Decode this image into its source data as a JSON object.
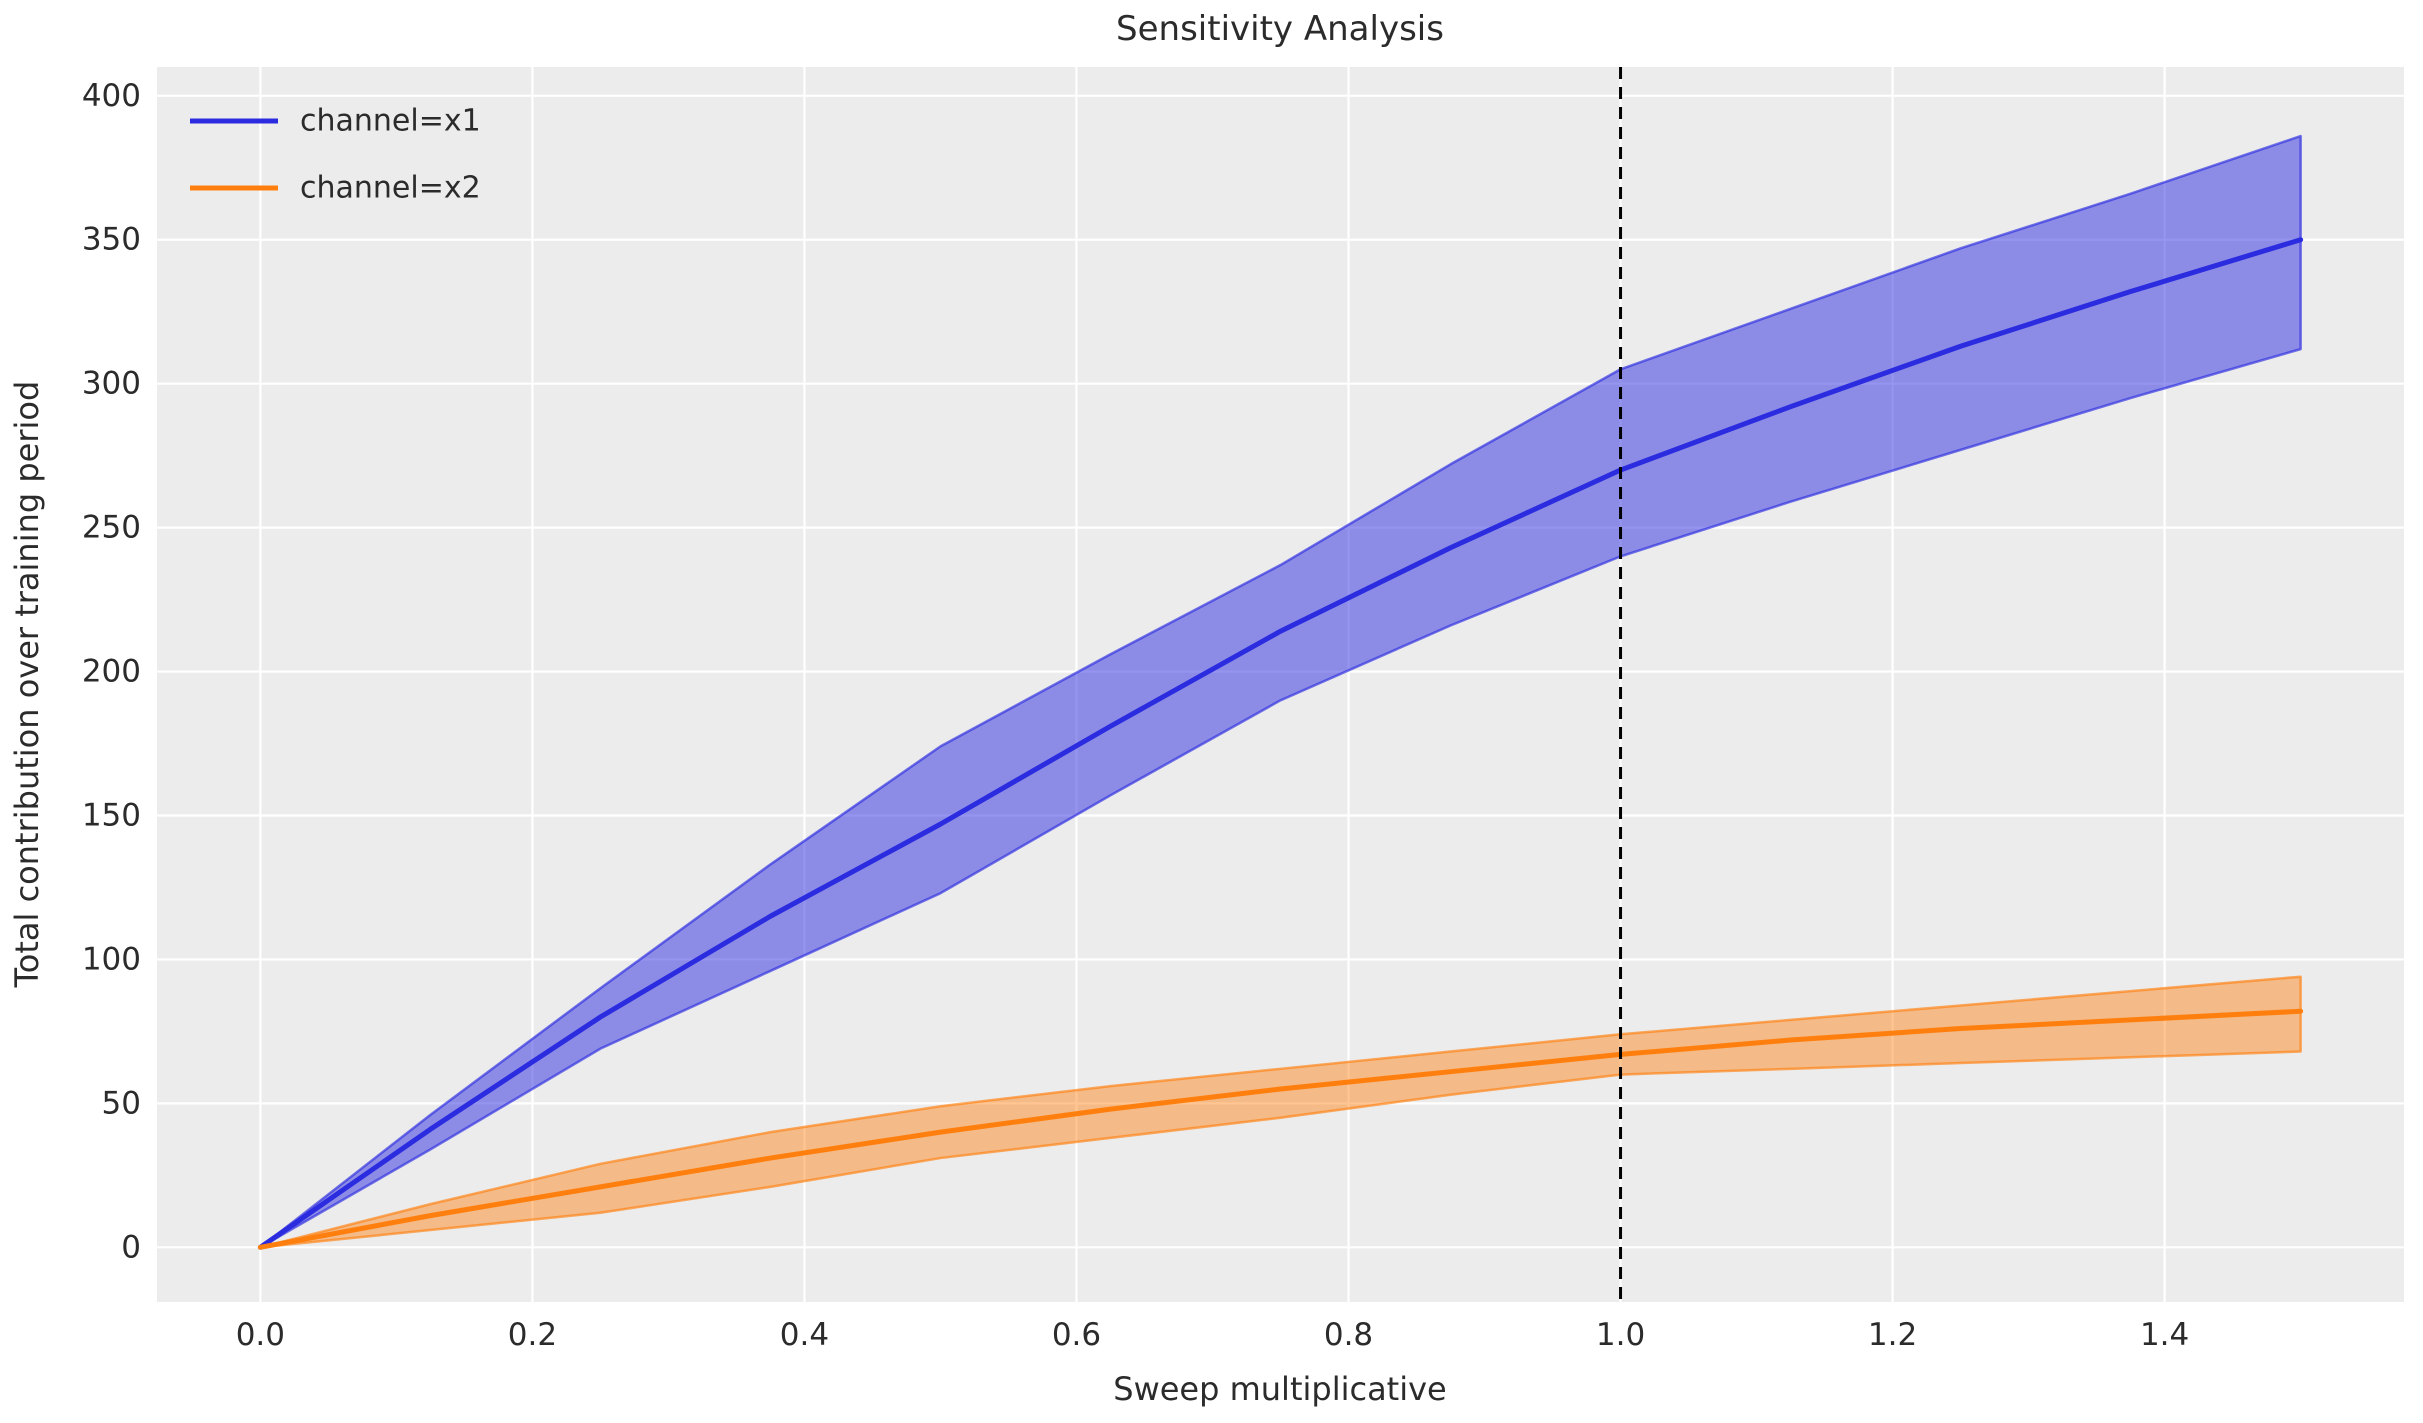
{
  "figure": {
    "background": "#ffffff",
    "plot_background": "#ececec",
    "grid_color": "#ffffff",
    "text_color": "#2b2b2b"
  },
  "chart_data": {
    "type": "line",
    "title": "Sensitivity Analysis",
    "xlabel": "Sweep multiplicative",
    "ylabel": "Total contribution over training period",
    "grid": true,
    "legend_position": "upper left",
    "xlim": [
      -0.076,
      1.576
    ],
    "ylim": [
      -19,
      410
    ],
    "xticks": [
      0.0,
      0.2,
      0.4,
      0.6,
      0.8,
      1.0,
      1.2,
      1.4
    ],
    "xtick_labels": [
      "0.0",
      "0.2",
      "0.4",
      "0.6",
      "0.8",
      "1.0",
      "1.2",
      "1.4"
    ],
    "yticks": [
      0,
      50,
      100,
      150,
      200,
      250,
      300,
      350,
      400
    ],
    "ytick_labels": [
      "0",
      "50",
      "100",
      "150",
      "200",
      "250",
      "300",
      "350",
      "400"
    ],
    "vline": {
      "x": 1.0,
      "color": "#000000",
      "style": "dashed"
    },
    "x": [
      0,
      0.125,
      0.25,
      0.375,
      0.5,
      0.625,
      0.75,
      0.875,
      1.0,
      1.125,
      1.25,
      1.375,
      1.5
    ],
    "series": [
      {
        "name": "channel=x1",
        "label": "channel=x1",
        "color": "#2b2be0",
        "band_fill_opacity": 0.5,
        "values": [
          0,
          41,
          80,
          115,
          147,
          181,
          214,
          243,
          270,
          292,
          313,
          332,
          350
        ],
        "band_low": [
          0,
          34,
          69,
          96,
          123,
          157,
          190,
          216,
          240,
          259,
          277,
          295,
          312
        ],
        "band_high": [
          0,
          46,
          90,
          133,
          174,
          206,
          237,
          272,
          305,
          326,
          347,
          366,
          386
        ]
      },
      {
        "name": "channel=x2",
        "label": "channel=x2",
        "color": "#ff7f0e",
        "band_fill_opacity": 0.45,
        "values": [
          0,
          11,
          21,
          31,
          40,
          48,
          55,
          61,
          67,
          72,
          76,
          79,
          82
        ],
        "band_low": [
          0,
          6,
          12,
          21,
          31,
          38,
          45,
          53,
          60,
          62,
          64,
          66,
          68
        ],
        "band_high": [
          0,
          15,
          29,
          40,
          49,
          56,
          62,
          68,
          74,
          79,
          84,
          89,
          94
        ]
      }
    ]
  }
}
